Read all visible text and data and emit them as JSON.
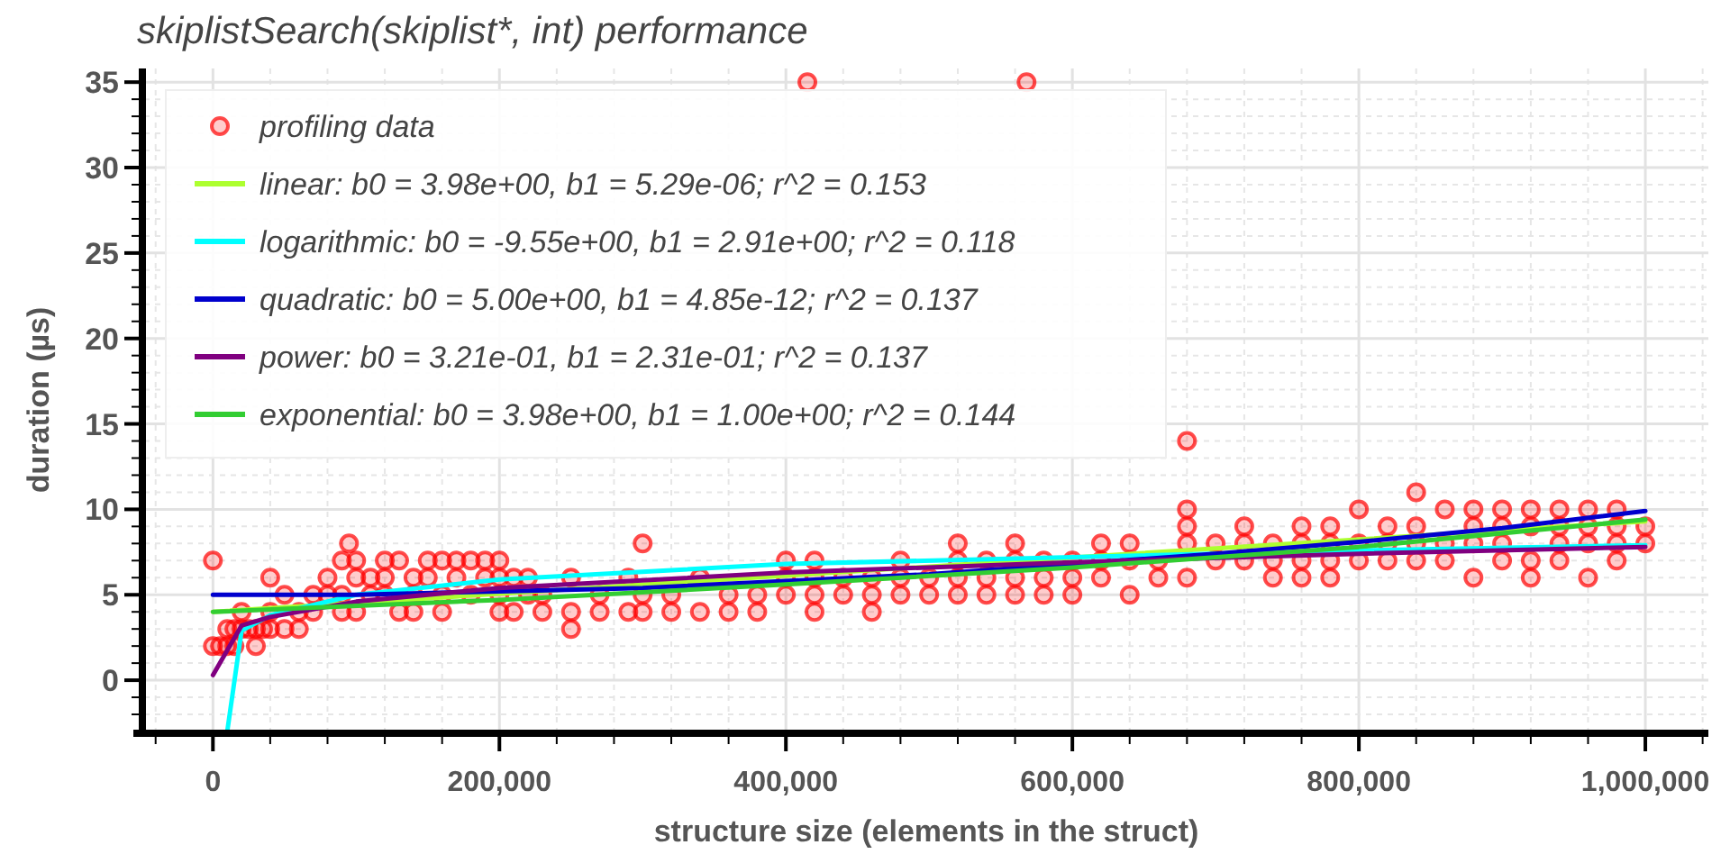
{
  "chart_data": {
    "type": "scatter",
    "title": "skiplistSearch(skiplist*, int) performance",
    "xlabel": "structure size (elements in the struct)",
    "ylabel": "duration (µs)",
    "xlim": [
      -48000,
      1044000
    ],
    "ylim": [
      -3,
      35.8
    ],
    "xticks": [
      {
        "value": -40000,
        "label": null
      },
      {
        "value": 0,
        "label": "0"
      },
      {
        "value": 40000,
        "label": null
      },
      {
        "value": 80000,
        "label": null
      },
      {
        "value": 120000,
        "label": null
      },
      {
        "value": 160000,
        "label": null
      },
      {
        "value": 200000,
        "label": "200,000"
      },
      {
        "value": 240000,
        "label": null
      },
      {
        "value": 280000,
        "label": null
      },
      {
        "value": 320000,
        "label": null
      },
      {
        "value": 360000,
        "label": null
      },
      {
        "value": 400000,
        "label": "400,000"
      },
      {
        "value": 440000,
        "label": null
      },
      {
        "value": 480000,
        "label": null
      },
      {
        "value": 520000,
        "label": null
      },
      {
        "value": 560000,
        "label": null
      },
      {
        "value": 600000,
        "label": "600,000"
      },
      {
        "value": 640000,
        "label": null
      },
      {
        "value": 680000,
        "label": null
      },
      {
        "value": 720000,
        "label": null
      },
      {
        "value": 760000,
        "label": null
      },
      {
        "value": 800000,
        "label": "800,000"
      },
      {
        "value": 840000,
        "label": null
      },
      {
        "value": 880000,
        "label": null
      },
      {
        "value": 920000,
        "label": null
      },
      {
        "value": 960000,
        "label": null
      },
      {
        "value": 1000000,
        "label": "1,000,000"
      },
      {
        "value": 1040000,
        "label": null
      }
    ],
    "yticks": [
      {
        "value": -2,
        "label": null
      },
      {
        "value": -1,
        "label": null
      },
      0,
      {
        "value": 1,
        "label": null
      },
      {
        "value": 2,
        "label": null
      },
      {
        "value": 3,
        "label": null
      },
      {
        "value": 4,
        "label": null
      },
      5,
      {
        "value": 6,
        "label": null
      },
      {
        "value": 7,
        "label": null
      },
      {
        "value": 8,
        "label": null
      },
      {
        "value": 9,
        "label": null
      },
      10,
      {
        "value": 11,
        "label": null
      },
      {
        "value": 12,
        "label": null
      },
      {
        "value": 13,
        "label": null
      },
      {
        "value": 14,
        "label": null
      },
      15,
      {
        "value": 16,
        "label": null
      },
      {
        "value": 17,
        "label": null
      },
      {
        "value": 18,
        "label": null
      },
      {
        "value": 19,
        "label": null
      },
      20,
      {
        "value": 21,
        "label": null
      },
      {
        "value": 22,
        "label": null
      },
      {
        "value": 23,
        "label": null
      },
      {
        "value": 24,
        "label": null
      },
      25,
      {
        "value": 26,
        "label": null
      },
      {
        "value": 27,
        "label": null
      },
      {
        "value": 28,
        "label": null
      },
      {
        "value": 29,
        "label": null
      },
      30,
      {
        "value": 31,
        "label": null
      },
      {
        "value": 32,
        "label": null
      },
      {
        "value": 33,
        "label": null
      },
      {
        "value": 34,
        "label": null
      },
      35
    ],
    "grid": true,
    "legend": "top left",
    "series": [
      {
        "name": "profiling data",
        "marker": "circle",
        "color": "#ff0000",
        "x": [
          0,
          0,
          5000,
          10000,
          10000,
          15000,
          15000,
          20000,
          20000,
          25000,
          30000,
          30000,
          35000,
          40000,
          40000,
          40000,
          50000,
          50000,
          60000,
          60000,
          70000,
          70000,
          80000,
          80000,
          90000,
          90000,
          90000,
          95000,
          100000,
          100000,
          100000,
          110000,
          110000,
          120000,
          120000,
          120000,
          130000,
          130000,
          140000,
          140000,
          140000,
          150000,
          150000,
          160000,
          160000,
          160000,
          170000,
          170000,
          180000,
          180000,
          190000,
          190000,
          200000,
          200000,
          200000,
          200000,
          210000,
          210000,
          220000,
          220000,
          230000,
          230000,
          250000,
          250000,
          250000,
          270000,
          270000,
          290000,
          290000,
          300000,
          300000,
          300000,
          320000,
          320000,
          340000,
          340000,
          360000,
          360000,
          380000,
          380000,
          400000,
          400000,
          400000,
          415000,
          420000,
          420000,
          420000,
          420000,
          440000,
          440000,
          460000,
          460000,
          460000,
          480000,
          480000,
          480000,
          500000,
          500000,
          520000,
          520000,
          520000,
          520000,
          540000,
          540000,
          540000,
          560000,
          560000,
          560000,
          560000,
          568000,
          580000,
          580000,
          580000,
          600000,
          600000,
          600000,
          620000,
          620000,
          620000,
          640000,
          640000,
          640000,
          660000,
          660000,
          680000,
          680000,
          680000,
          680000,
          680000,
          700000,
          700000,
          720000,
          720000,
          720000,
          740000,
          740000,
          740000,
          760000,
          760000,
          760000,
          760000,
          780000,
          780000,
          780000,
          780000,
          800000,
          800000,
          800000,
          820000,
          820000,
          820000,
          840000,
          840000,
          840000,
          840000,
          860000,
          860000,
          860000,
          880000,
          880000,
          880000,
          880000,
          900000,
          900000,
          900000,
          900000,
          920000,
          920000,
          920000,
          920000,
          940000,
          940000,
          940000,
          940000,
          960000,
          960000,
          960000,
          960000,
          980000,
          980000,
          980000,
          980000,
          1000000,
          1000000
        ],
        "values": [
          2,
          7,
          2,
          2,
          3,
          3,
          2,
          3,
          4,
          3,
          3,
          2,
          3,
          4,
          6,
          3,
          3,
          5,
          4,
          3,
          5,
          4,
          5,
          6,
          5,
          7,
          4,
          8,
          7,
          6,
          4,
          6,
          5,
          7,
          6,
          5,
          7,
          4,
          6,
          5,
          4,
          7,
          6,
          7,
          5,
          4,
          7,
          6,
          7,
          5,
          7,
          6,
          7,
          6,
          5,
          4,
          6,
          4,
          6,
          5,
          5,
          4,
          6,
          4,
          3,
          5,
          4,
          6,
          4,
          8,
          5,
          4,
          5,
          4,
          6,
          4,
          5,
          4,
          5,
          4,
          7,
          6,
          5,
          35,
          7,
          6,
          5,
          4,
          6,
          5,
          6,
          5,
          4,
          7,
          6,
          5,
          6,
          5,
          8,
          7,
          6,
          5,
          7,
          6,
          5,
          8,
          7,
          6,
          5,
          35,
          7,
          6,
          5,
          7,
          6,
          5,
          8,
          7,
          6,
          8,
          7,
          5,
          7,
          6,
          14,
          10,
          9,
          8,
          6,
          8,
          7,
          9,
          8,
          7,
          8,
          7,
          6,
          9,
          8,
          7,
          6,
          9,
          8,
          7,
          6,
          10,
          8,
          7,
          9,
          8,
          7,
          11,
          9,
          8,
          7,
          10,
          8,
          7,
          10,
          9,
          8,
          6,
          10,
          9,
          8,
          7,
          10,
          9,
          7,
          6,
          10,
          9,
          8,
          7,
          10,
          9,
          8,
          6,
          10,
          9,
          8,
          7,
          9,
          8
        ]
      },
      {
        "name": "linear: b0 = 3.98e+00, b1 = 5.29e-06; r^2 = 0.153",
        "type": "line",
        "color": "#adff2f",
        "x": [
          0,
          1000000
        ],
        "values": [
          4,
          9.3
        ]
      },
      {
        "name": "logarithmic: b0 = -9.55e+00, b1 = 2.91e+00; r^2 = 0.118",
        "type": "line",
        "color": "#00ffff",
        "x": [
          10000,
          20000,
          40000,
          100000,
          200000,
          400000,
          600000,
          800000,
          1000000
        ],
        "values": [
          -3,
          2.9,
          3.8,
          5,
          5.9,
          6.8,
          7.2,
          7.6,
          7.9
        ]
      },
      {
        "name": "quadratic: b0 = 5.00e+00, b1 = 4.85e-12; r^2 = 0.137",
        "type": "line",
        "color": "#0000cd",
        "x": [
          0,
          100000,
          200000,
          300000,
          400000,
          500000,
          600000,
          700000,
          800000,
          900000,
          1000000
        ],
        "values": [
          5,
          5,
          5.2,
          5.4,
          5.8,
          6.2,
          6.8,
          7.4,
          8.1,
          8.9,
          9.9
        ]
      },
      {
        "name": "power: b0 = 3.21e-01, b1 = 2.31e-01; r^2 = 0.137",
        "type": "line",
        "color": "#800080",
        "x": [
          0,
          20000,
          40000,
          100000,
          200000,
          400000,
          600000,
          800000,
          1000000
        ],
        "values": [
          0.3,
          3.2,
          3.7,
          4.6,
          5.4,
          6.3,
          6.9,
          7.4,
          7.8
        ]
      },
      {
        "name": "exponential: b0 = 3.98e+00, b1 = 1.00e+00; r^2 = 0.144",
        "type": "line",
        "color": "#32cd32",
        "x": [
          0,
          200000,
          400000,
          600000,
          800000,
          1000000
        ],
        "values": [
          4,
          4.7,
          5.6,
          6.6,
          7.8,
          9.4
        ]
      }
    ]
  }
}
